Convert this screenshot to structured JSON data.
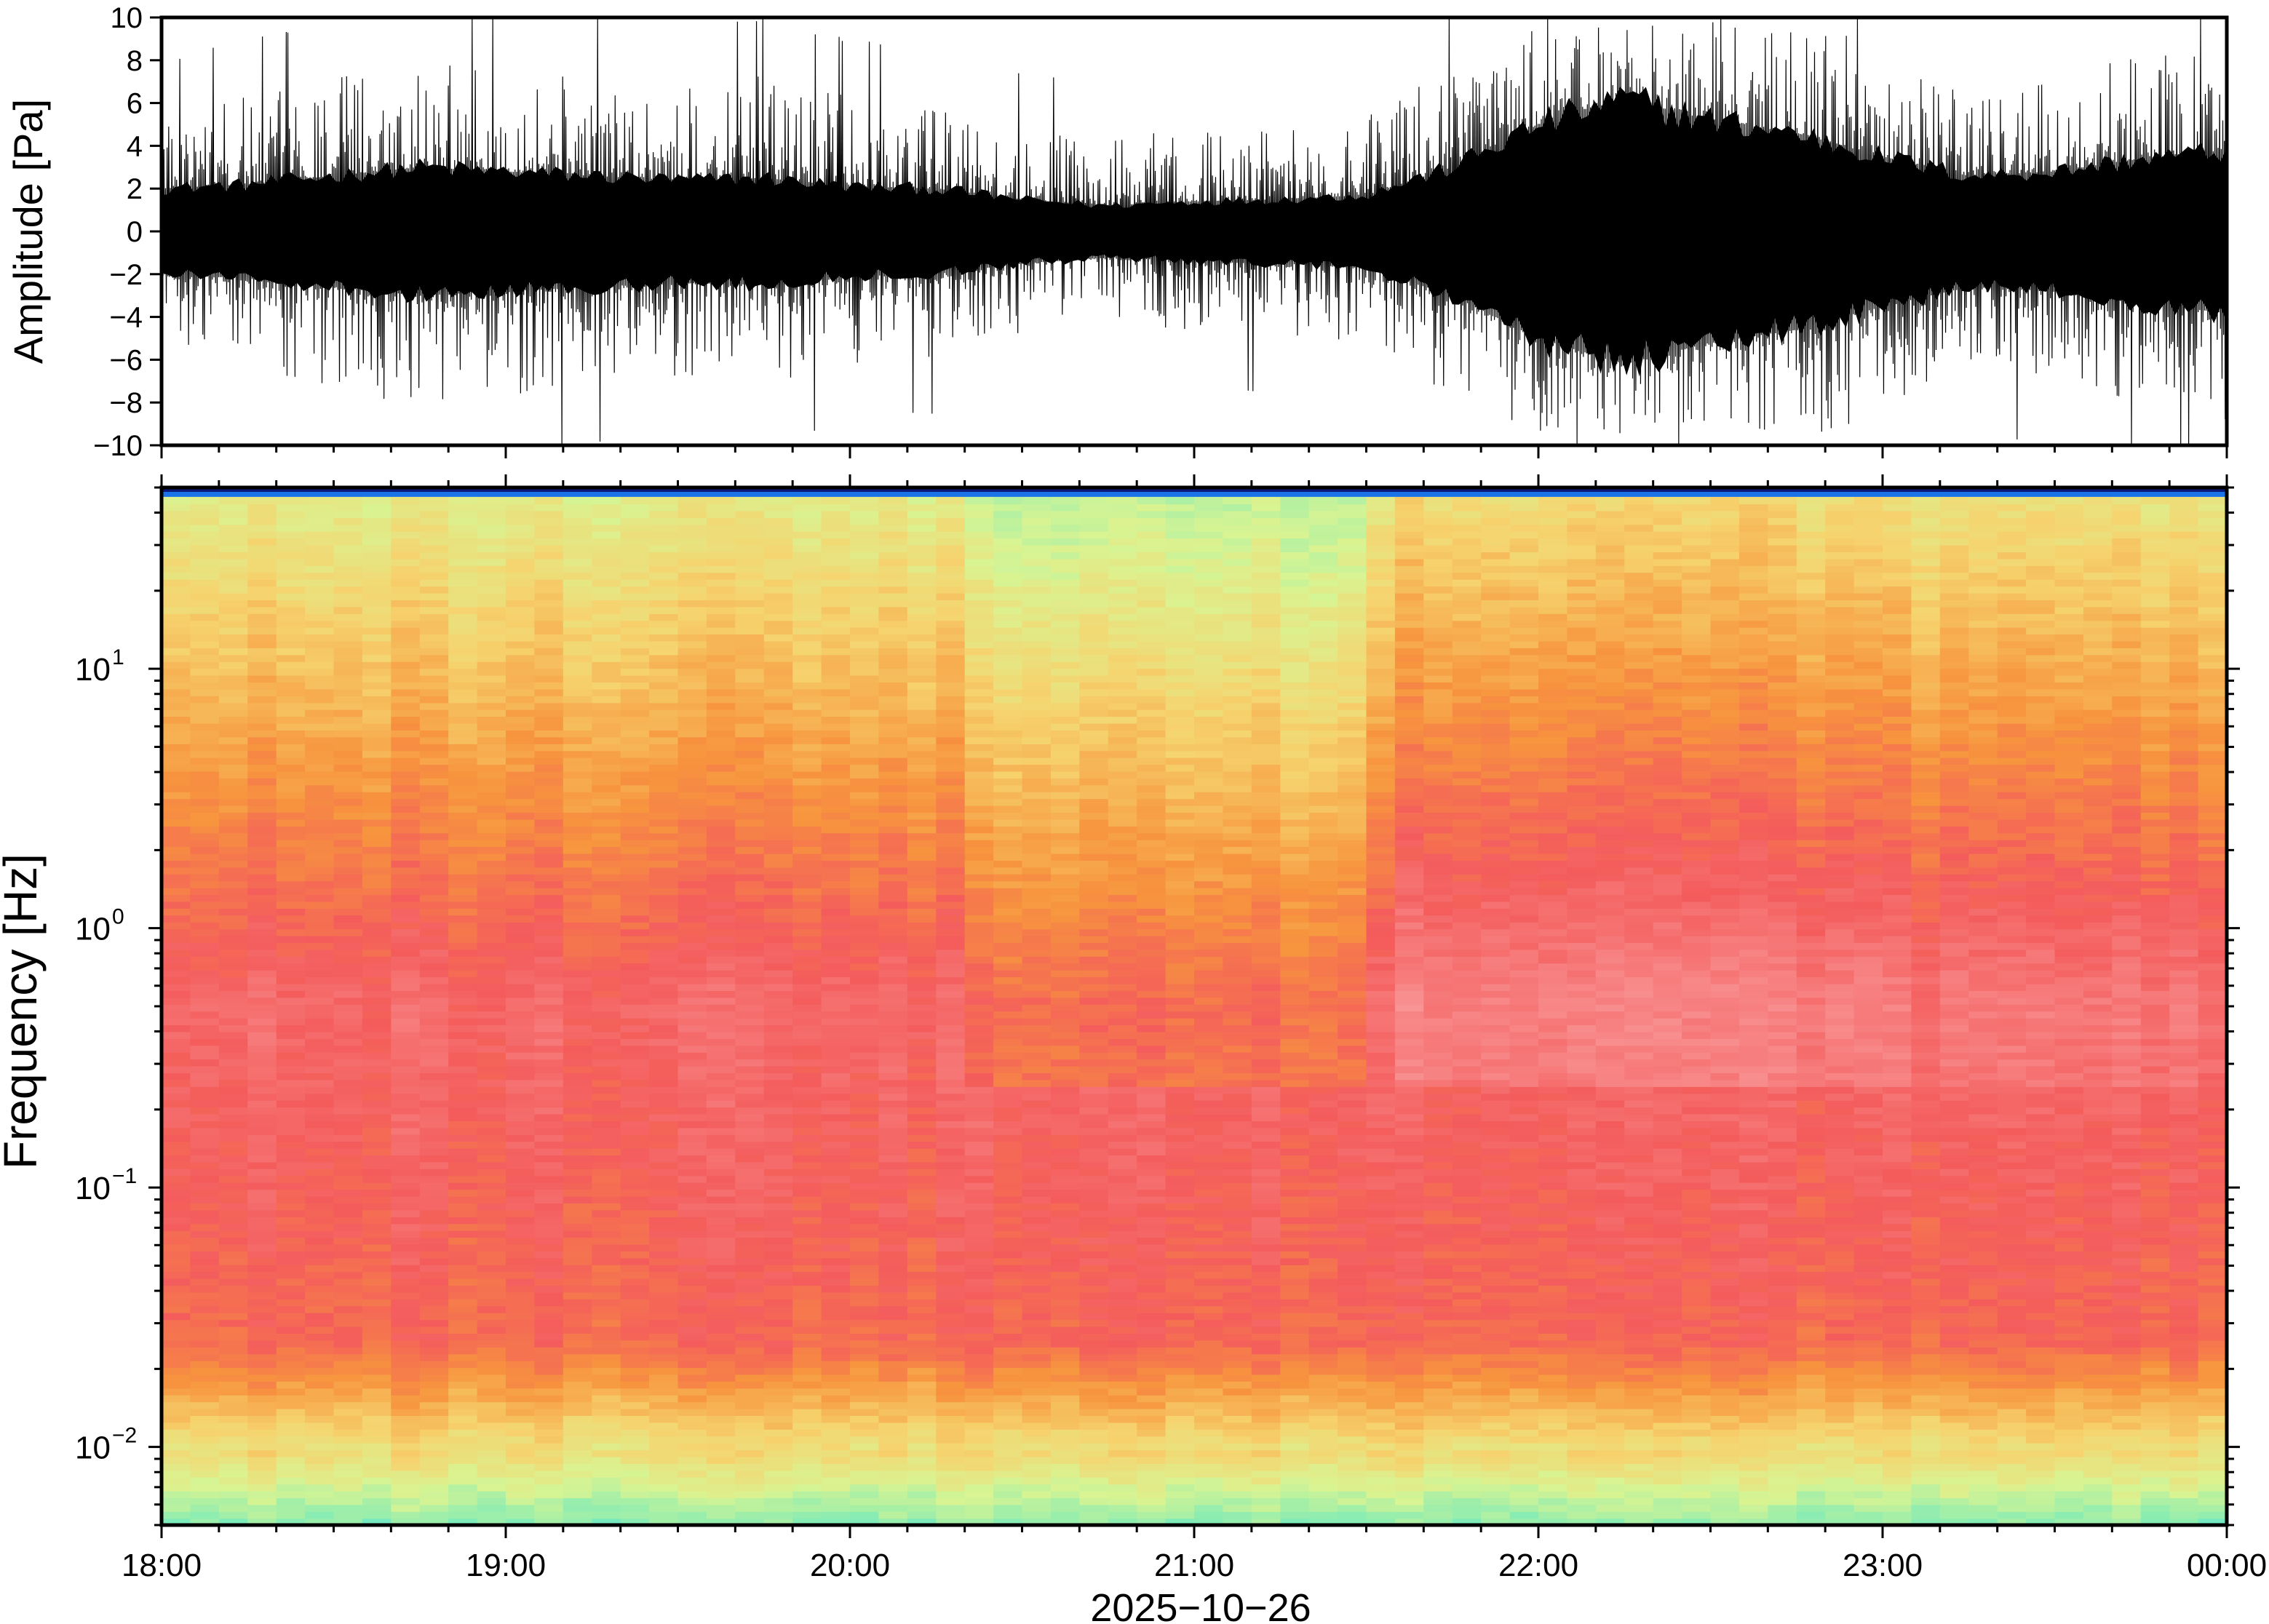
{
  "chart_data": [
    {
      "type": "line",
      "panel": "waveform",
      "ylabel": "Amplitude [Pa]",
      "xlabel": "",
      "ylim": [
        -10,
        10
      ],
      "y_ticks": [
        -10,
        -8,
        -6,
        -4,
        -2,
        0,
        2,
        4,
        6,
        8,
        10
      ],
      "y_tick_labels": [
        "−10",
        "−8",
        "−6",
        "−4",
        "−2",
        "0",
        "2",
        "4",
        "6",
        "8",
        "10"
      ],
      "x_range_hours": [
        18,
        24
      ],
      "envelope": {
        "hours": [
          18.0,
          18.25,
          18.5,
          18.75,
          19.0,
          19.25,
          19.5,
          19.75,
          20.0,
          20.25,
          20.5,
          20.75,
          21.0,
          21.25,
          21.5,
          21.75,
          22.0,
          22.25,
          22.5,
          22.75,
          23.0,
          23.25,
          23.5,
          23.75,
          24.0
        ],
        "core": [
          2.0,
          2.2,
          2.6,
          3.0,
          2.8,
          2.6,
          2.4,
          2.5,
          2.1,
          2.0,
          1.5,
          1.2,
          1.4,
          1.5,
          1.7,
          3.0,
          5.0,
          6.2,
          5.2,
          4.6,
          3.5,
          2.6,
          2.8,
          3.4,
          3.8
        ],
        "peak": [
          5.5,
          6.5,
          7.5,
          8.5,
          8.0,
          7.5,
          7.0,
          7.5,
          6.5,
          6.0,
          5.0,
          4.5,
          5.0,
          5.0,
          5.5,
          8.0,
          10,
          10,
          10,
          10,
          9.0,
          7.0,
          7.5,
          8.5,
          9.5
        ]
      }
    },
    {
      "type": "heatmap",
      "panel": "spectrogram",
      "ylabel": "Frequency [Hz]",
      "xlabel": "2025−10−26",
      "yscale": "log",
      "ylim": [
        0.005,
        50
      ],
      "y_ticks": [
        0.01,
        0.1,
        1,
        10
      ],
      "y_tick_labels": [
        [
          "10",
          "−2"
        ],
        [
          "10",
          "−1"
        ],
        [
          "10",
          "0"
        ],
        [
          "10",
          "1"
        ]
      ],
      "colormap": [
        "#41e0e8",
        "#86ecb4",
        "#d9f492",
        "#f6d36e",
        "#f7953e",
        "#f45c5c",
        "#f88a8a",
        "#f7c5c5"
      ],
      "top_band_color": "#1b73e8",
      "time_bins": 72,
      "features": {
        "quiet_window_hours": [
          20.3,
          21.5
        ],
        "energetic_window_hours": [
          21.6,
          23.0
        ]
      }
    }
  ],
  "x_ticks": [
    18,
    19,
    20,
    21,
    22,
    23,
    24
  ],
  "x_tick_labels": [
    "18:00",
    "19:00",
    "20:00",
    "21:00",
    "22:00",
    "23:00",
    "00:00"
  ],
  "date_label": "2025−10−26"
}
